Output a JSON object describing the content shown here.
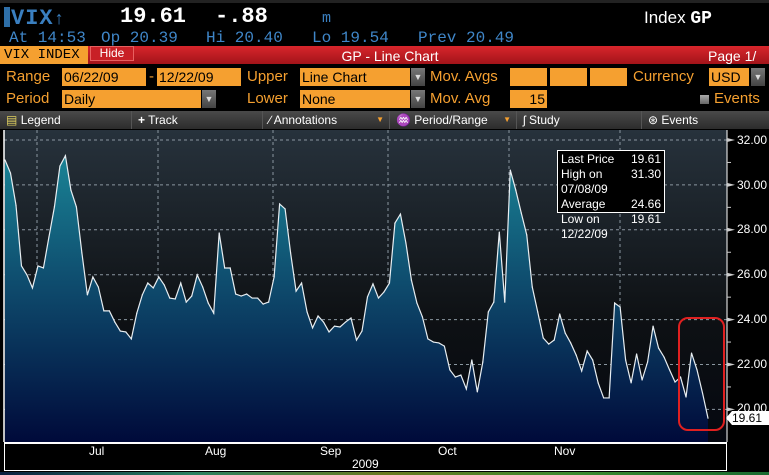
{
  "header": {
    "ticker": "VIX",
    "direction_icon": "up-arrow",
    "price": "19.61",
    "change": "-.88",
    "unit": "m",
    "index_label": "Index",
    "function": "GP",
    "time": "At 14:53",
    "open": "Op 20.39",
    "high": "Hi 20.40",
    "low": "Lo 19.54",
    "prev": "Prev 20.49"
  },
  "titlebar": {
    "security": "VIX INDEX",
    "hide": "Hide",
    "title": "GP - Line Chart",
    "page": "Page 1/"
  },
  "form": {
    "range_label": "Range",
    "range_start": "06/22/09",
    "range_sep": "-",
    "range_end": "12/22/09",
    "upper_label": "Upper",
    "upper_value": "Line Chart",
    "mov_avgs_label": "Mov. Avgs",
    "mov_avgs": [
      "",
      "",
      ""
    ],
    "currency_label": "Currency",
    "currency_value": "USD",
    "period_label": "Period",
    "period_value": "Daily",
    "lower_label": "Lower",
    "lower_value": "None",
    "mov_avg_label": "Mov. Avg",
    "mov_avg_value": "15",
    "events_label": "Events"
  },
  "toolbar": {
    "legend": "Legend",
    "track": "Track",
    "annotations": "Annotations",
    "period_range": "Period/Range",
    "study": "Study",
    "events": "Events"
  },
  "legend": {
    "rows": [
      [
        "Last Price",
        "19.61"
      ],
      [
        "High on  07/08/09",
        "31.30"
      ],
      [
        "Average",
        "24.66"
      ],
      [
        "Low on  12/22/09",
        "19.61"
      ]
    ]
  },
  "colors": {
    "accent": "#f5a030",
    "titlebar": "#c8202a",
    "line": "#e8eef2",
    "fill_top": "#1b8a9a",
    "fill_bottom": "#000a3a",
    "highlight_box": "#e02020"
  },
  "chart_data": {
    "type": "area",
    "series": [
      {
        "values": [
          31.11,
          30.53,
          29.1,
          26.39,
          25.99,
          25.41,
          26.39,
          26.3,
          27.68,
          29.02,
          30.84,
          31.3,
          29.77,
          29.02,
          26.97,
          25.1,
          25.9,
          25.45,
          24.39,
          24.39,
          23.89,
          23.49,
          23.45,
          23.14,
          24.29,
          25.1,
          25.63,
          25.41,
          25.9,
          25.54,
          24.96,
          24.92,
          25.63,
          24.78,
          25.05,
          25.99,
          25.45,
          24.74,
          24.29,
          27.86,
          26.3,
          26.3,
          25.14,
          25.05,
          25.14,
          24.96,
          24.96,
          24.69,
          24.78,
          25.9,
          29.15,
          28.93,
          26.97,
          25.27,
          25.63,
          24.34,
          23.63,
          24.16,
          23.89,
          23.45,
          23.71,
          23.67,
          23.89,
          24.07,
          23.09,
          23.49,
          25.01,
          25.59,
          24.96,
          25.23,
          25.63,
          28.3,
          28.7,
          27.41,
          25.76,
          24.74,
          24.12,
          23.14,
          23.0,
          22.96,
          22.82,
          21.76,
          21.44,
          21.53,
          20.91,
          22.2,
          20.78,
          22.11,
          24.34,
          24.78,
          27.9,
          24.78,
          30.66,
          29.77,
          28.75,
          27.77,
          25.45,
          24.34,
          23.18,
          22.91,
          23.09,
          24.25,
          23.4,
          22.96,
          22.42,
          21.71,
          22.6,
          22.2,
          21.18,
          20.51,
          20.51,
          24.74,
          24.56,
          22.2,
          21.18,
          22.47,
          21.31,
          22.11,
          23.71,
          22.73,
          22.33,
          21.76,
          21.22,
          21.44,
          20.55,
          22.51,
          21.76,
          20.73,
          19.61
        ]
      }
    ],
    "x_range": [
      "06/22/09",
      "12/22/09"
    ],
    "x_tick_labels": [
      "Jul",
      "Aug",
      "Sep",
      "Oct",
      "Nov"
    ],
    "x_year_label": "2009",
    "y_tick_labels": [
      "32.00",
      "30.00",
      "28.00",
      "26.00",
      "24.00",
      "22.00",
      "20.00"
    ],
    "ylim": [
      19.2,
      32.5
    ],
    "grid": true,
    "last_price_tag": "19.61",
    "y_axis_side": "right"
  }
}
